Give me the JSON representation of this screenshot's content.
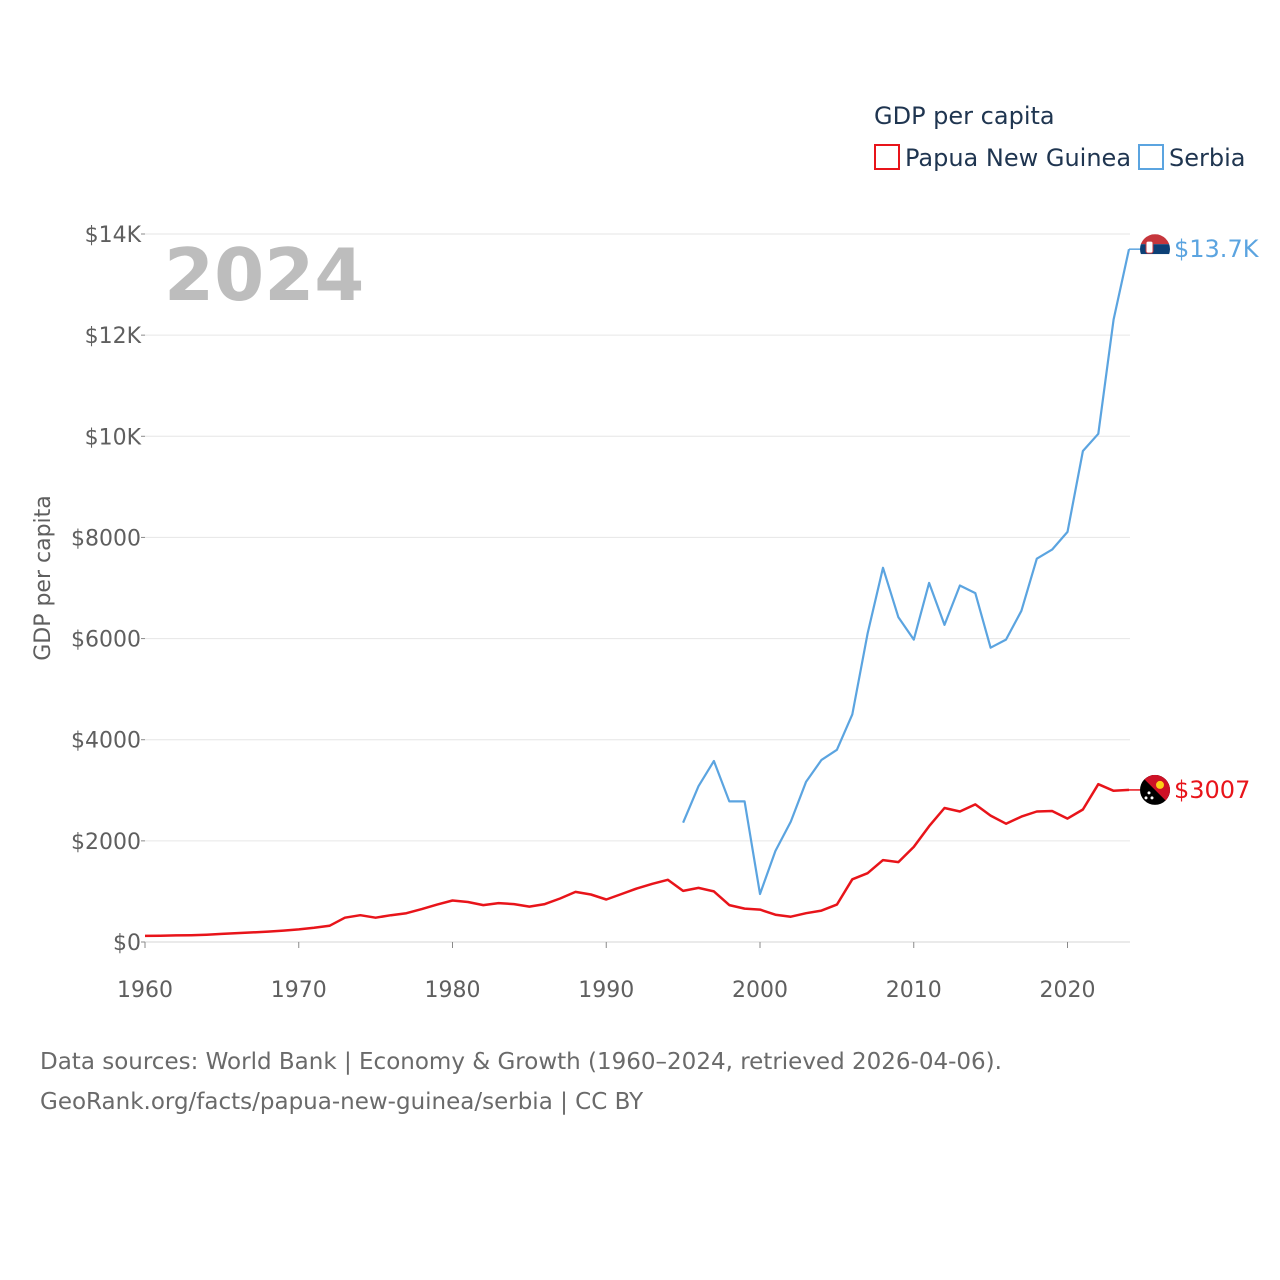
{
  "chart_data": {
    "type": "line",
    "year_label": "2024",
    "ylabel": "GDP per capita",
    "legend": {
      "title": "GDP per capita",
      "placement": "top-right"
    },
    "x_ticks": [
      1960,
      1970,
      1980,
      1990,
      2000,
      2010,
      2020
    ],
    "x_tick_labels": [
      "1960",
      "1970",
      "1980",
      "1990",
      "2000",
      "2010",
      "2020"
    ],
    "xlim": [
      1960,
      2024
    ],
    "y_ticks": [
      0,
      2000,
      4000,
      6000,
      8000,
      10000,
      12000,
      14000
    ],
    "y_tick_labels": [
      "$0",
      "$2000",
      "$4000",
      "$6000",
      "$8000",
      "$10K",
      "$12K",
      "$14K"
    ],
    "ylim": [
      0,
      14000
    ],
    "grid": true,
    "series": [
      {
        "name": "Papua New Guinea",
        "color": "#e8141a",
        "end_label": "$3007",
        "flag": "papua-new-guinea-flag-icon",
        "x": [
          1960,
          1961,
          1962,
          1963,
          1964,
          1965,
          1966,
          1967,
          1968,
          1969,
          1970,
          1971,
          1972,
          1973,
          1974,
          1975,
          1976,
          1977,
          1978,
          1979,
          1980,
          1981,
          1982,
          1983,
          1984,
          1985,
          1986,
          1987,
          1988,
          1989,
          1990,
          1991,
          1992,
          1993,
          1994,
          1995,
          1996,
          1997,
          1998,
          1999,
          2000,
          2001,
          2002,
          2003,
          2004,
          2005,
          2006,
          2007,
          2008,
          2009,
          2010,
          2011,
          2012,
          2013,
          2014,
          2015,
          2016,
          2017,
          2018,
          2019,
          2020,
          2021,
          2022,
          2023,
          2024
        ],
        "values": [
          120,
          125,
          130,
          135,
          145,
          160,
          175,
          190,
          205,
          225,
          250,
          280,
          320,
          480,
          530,
          480,
          530,
          570,
          650,
          740,
          820,
          790,
          730,
          770,
          750,
          700,
          750,
          860,
          990,
          940,
          840,
          950,
          1060,
          1150,
          1230,
          1010,
          1070,
          1000,
          730,
          660,
          640,
          540,
          500,
          570,
          620,
          740,
          1240,
          1360,
          1620,
          1580,
          1880,
          2290,
          2650,
          2580,
          2720,
          2500,
          2340,
          2480,
          2580,
          2590,
          2440,
          2620,
          3120,
          2990,
          3007
        ]
      },
      {
        "name": "Serbia",
        "color": "#5ba4e0",
        "end_label": "$13.7K",
        "flag": "serbia-flag-icon",
        "x": [
          1995,
          1996,
          1997,
          1998,
          1999,
          2000,
          2001,
          2002,
          2003,
          2004,
          2005,
          2006,
          2007,
          2008,
          2009,
          2010,
          2011,
          2012,
          2013,
          2014,
          2015,
          2016,
          2017,
          2018,
          2019,
          2020,
          2021,
          2022,
          2023,
          2024
        ],
        "values": [
          2360,
          3080,
          3580,
          2780,
          2780,
          950,
          1800,
          2380,
          3170,
          3600,
          3800,
          4500,
          6100,
          7400,
          6420,
          5980,
          7100,
          6270,
          7050,
          6900,
          5820,
          5980,
          6550,
          7580,
          7760,
          8110,
          9710,
          10050,
          12310,
          13700
        ]
      }
    ]
  },
  "source": {
    "line1": "Data sources: World Bank | Economy & Growth (1960–2024, retrieved 2026-04-06).",
    "line2": "GeoRank.org/facts/papua-new-guinea/serbia | CC BY"
  }
}
